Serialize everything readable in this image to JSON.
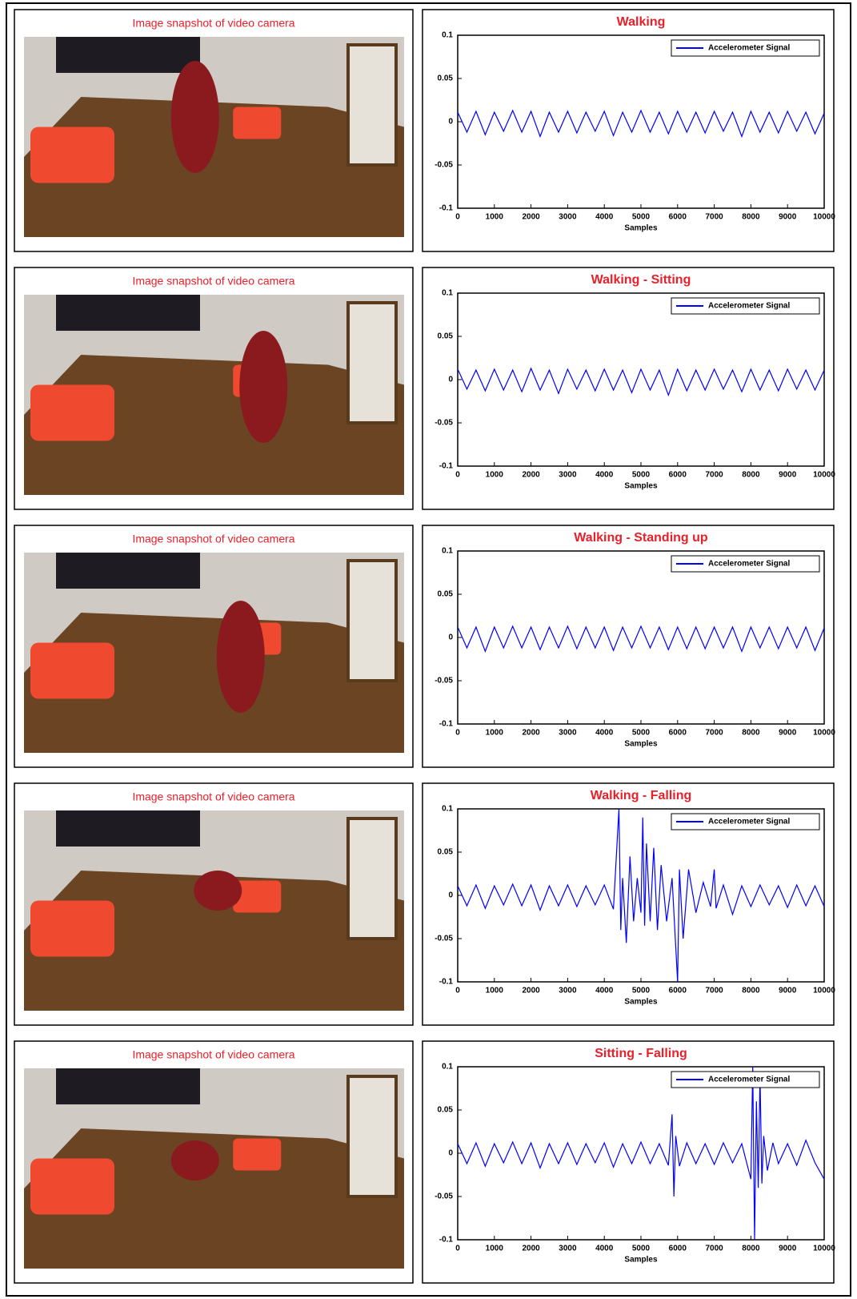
{
  "snapshots": [
    {
      "caption": "Image snapshot of video camera"
    },
    {
      "caption": "Image snapshot of video camera"
    },
    {
      "caption": "Image snapshot of video camera"
    },
    {
      "caption": "Image snapshot of video camera"
    },
    {
      "caption": "Image snapshot of video camera"
    }
  ],
  "chart_data": [
    {
      "type": "line",
      "title": "Walking",
      "xlabel": "Samples",
      "legend": "upper right",
      "xlim": [
        0,
        10000
      ],
      "ylim": [
        -0.1,
        0.1
      ],
      "xticks": [
        0,
        1000,
        2000,
        3000,
        4000,
        5000,
        6000,
        7000,
        8000,
        9000,
        10000
      ],
      "yticks": [
        -0.1,
        -0.05,
        0,
        0.05,
        0.1
      ],
      "x": [
        0,
        250,
        500,
        750,
        1000,
        1250,
        1500,
        1750,
        2000,
        2250,
        2500,
        2750,
        3000,
        3250,
        3500,
        3750,
        4000,
        4250,
        4500,
        4750,
        5000,
        5250,
        5500,
        5750,
        6000,
        6250,
        6500,
        6750,
        7000,
        7250,
        7500,
        7750,
        8000,
        8250,
        8500,
        8750,
        9000,
        9250,
        9500,
        9750,
        10000
      ],
      "series": [
        {
          "name": "Accelerometer Signal",
          "color": "#0000ff",
          "values": [
            0.011,
            -0.012,
            0.012,
            -0.015,
            0.011,
            -0.011,
            0.013,
            -0.012,
            0.012,
            -0.017,
            0.011,
            -0.012,
            0.012,
            -0.013,
            0.011,
            -0.011,
            0.012,
            -0.016,
            0.011,
            -0.012,
            0.013,
            -0.012,
            0.011,
            -0.014,
            0.012,
            -0.012,
            0.011,
            -0.013,
            0.012,
            -0.011,
            0.011,
            -0.017,
            0.012,
            -0.012,
            0.011,
            -0.013,
            0.012,
            -0.011,
            0.011,
            -0.014,
            0.01
          ]
        }
      ]
    },
    {
      "type": "line",
      "title": "Walking - Sitting",
      "xlabel": "Samples",
      "legend": "upper right",
      "xlim": [
        0,
        10000
      ],
      "ylim": [
        -0.1,
        0.1
      ],
      "xticks": [
        0,
        1000,
        2000,
        3000,
        4000,
        5000,
        6000,
        7000,
        8000,
        9000,
        10000
      ],
      "yticks": [
        -0.1,
        -0.05,
        0,
        0.05,
        0.1
      ],
      "x": [
        0,
        250,
        500,
        750,
        1000,
        1250,
        1500,
        1750,
        2000,
        2250,
        2500,
        2750,
        3000,
        3250,
        3500,
        3750,
        4000,
        4250,
        4500,
        4750,
        5000,
        5250,
        5500,
        5750,
        6000,
        6250,
        6500,
        6750,
        7000,
        7250,
        7500,
        7750,
        8000,
        8250,
        8500,
        8750,
        9000,
        9250,
        9500,
        9750,
        10000
      ],
      "series": [
        {
          "name": "Accelerometer Signal",
          "color": "#0000ff",
          "values": [
            0.012,
            -0.011,
            0.011,
            -0.013,
            0.012,
            -0.012,
            0.011,
            -0.014,
            0.013,
            -0.012,
            0.011,
            -0.016,
            0.012,
            -0.011,
            0.011,
            -0.013,
            0.012,
            -0.012,
            0.011,
            -0.015,
            0.012,
            -0.012,
            0.011,
            -0.018,
            0.012,
            -0.013,
            0.011,
            -0.012,
            0.012,
            -0.011,
            0.011,
            -0.014,
            0.012,
            -0.012,
            0.011,
            -0.013,
            0.012,
            -0.011,
            0.011,
            -0.012,
            0.011
          ]
        }
      ]
    },
    {
      "type": "line",
      "title": "Walking - Standing up",
      "xlabel": "Samples",
      "legend": "upper right",
      "xlim": [
        0,
        10000
      ],
      "ylim": [
        -0.1,
        0.1
      ],
      "xticks": [
        0,
        1000,
        2000,
        3000,
        4000,
        5000,
        6000,
        7000,
        8000,
        9000,
        10000
      ],
      "yticks": [
        -0.1,
        -0.05,
        0,
        0.05,
        0.1
      ],
      "x": [
        0,
        250,
        500,
        750,
        1000,
        1250,
        1500,
        1750,
        2000,
        2250,
        2500,
        2750,
        3000,
        3250,
        3500,
        3750,
        4000,
        4250,
        4500,
        4750,
        5000,
        5250,
        5500,
        5750,
        6000,
        6250,
        6500,
        6750,
        7000,
        7250,
        7500,
        7750,
        8000,
        8250,
        8500,
        8750,
        9000,
        9250,
        9500,
        9750,
        10000
      ],
      "series": [
        {
          "name": "Accelerometer Signal",
          "color": "#0000ff",
          "values": [
            0.012,
            -0.012,
            0.012,
            -0.016,
            0.012,
            -0.012,
            0.013,
            -0.012,
            0.012,
            -0.014,
            0.012,
            -0.012,
            0.013,
            -0.013,
            0.012,
            -0.012,
            0.012,
            -0.015,
            0.012,
            -0.012,
            0.013,
            -0.012,
            0.012,
            -0.014,
            0.012,
            -0.013,
            0.012,
            -0.013,
            0.012,
            -0.012,
            0.012,
            -0.016,
            0.012,
            -0.012,
            0.012,
            -0.013,
            0.012,
            -0.012,
            0.012,
            -0.015,
            0.011
          ]
        }
      ]
    },
    {
      "type": "line",
      "title": "Walking - Falling",
      "xlabel": "Samples",
      "legend": "upper right",
      "xlim": [
        0,
        10000
      ],
      "ylim": [
        -0.1,
        0.1
      ],
      "xticks": [
        0,
        1000,
        2000,
        3000,
        4000,
        5000,
        6000,
        7000,
        8000,
        9000,
        10000
      ],
      "yticks": [
        -0.1,
        -0.05,
        0,
        0.05,
        0.1
      ],
      "x": [
        0,
        250,
        500,
        750,
        1000,
        1250,
        1500,
        1750,
        2000,
        2250,
        2500,
        2750,
        3000,
        3250,
        3500,
        3750,
        4000,
        4250,
        4400,
        4450,
        4500,
        4600,
        4700,
        4800,
        4900,
        5000,
        5050,
        5100,
        5150,
        5250,
        5350,
        5450,
        5550,
        5700,
        5850,
        5950,
        6000,
        6050,
        6150,
        6300,
        6500,
        6700,
        6900,
        7000,
        7050,
        7250,
        7500,
        7750,
        8000,
        8250,
        8500,
        8750,
        9000,
        9250,
        9500,
        9750,
        10000
      ],
      "series": [
        {
          "name": "Accelerometer Signal",
          "color": "#0000ff",
          "values": [
            0.011,
            -0.012,
            0.012,
            -0.015,
            0.011,
            -0.011,
            0.013,
            -0.012,
            0.012,
            -0.017,
            0.011,
            -0.012,
            0.012,
            -0.013,
            0.011,
            -0.011,
            0.012,
            -0.016,
            0.1,
            -0.04,
            0.02,
            -0.055,
            0.045,
            -0.03,
            0.02,
            -0.02,
            0.09,
            -0.035,
            0.06,
            -0.03,
            0.055,
            -0.04,
            0.035,
            -0.03,
            0.02,
            -0.06,
            -0.1,
            0.03,
            -0.05,
            0.03,
            -0.02,
            0.015,
            -0.013,
            0.03,
            -0.015,
            0.012,
            -0.022,
            0.011,
            -0.013,
            0.012,
            -0.011,
            0.011,
            -0.014,
            0.012,
            -0.012,
            0.011,
            -0.013
          ]
        }
      ]
    },
    {
      "type": "line",
      "title": "Sitting - Falling",
      "xlabel": "Samples",
      "legend": "upper right",
      "xlim": [
        0,
        10000
      ],
      "ylim": [
        -0.1,
        0.1
      ],
      "xticks": [
        0,
        1000,
        2000,
        3000,
        4000,
        5000,
        6000,
        7000,
        8000,
        9000,
        10000
      ],
      "yticks": [
        -0.1,
        -0.05,
        0,
        0.05,
        0.1
      ],
      "x": [
        0,
        250,
        500,
        750,
        1000,
        1250,
        1500,
        1750,
        2000,
        2250,
        2500,
        2750,
        3000,
        3250,
        3500,
        3750,
        4000,
        4250,
        4500,
        4750,
        5000,
        5250,
        5500,
        5750,
        5850,
        5900,
        5950,
        6050,
        6250,
        6500,
        6750,
        7000,
        7250,
        7500,
        7750,
        8000,
        8050,
        8100,
        8150,
        8200,
        8250,
        8300,
        8350,
        8450,
        8600,
        8750,
        9000,
        9250,
        9500,
        9750,
        10000
      ],
      "series": [
        {
          "name": "Accelerometer Signal",
          "color": "#0000ff",
          "values": [
            0.011,
            -0.012,
            0.012,
            -0.015,
            0.011,
            -0.011,
            0.013,
            -0.012,
            0.012,
            -0.017,
            0.011,
            -0.012,
            0.012,
            -0.013,
            0.011,
            -0.011,
            0.012,
            -0.016,
            0.011,
            -0.012,
            0.013,
            -0.012,
            0.011,
            -0.014,
            0.045,
            -0.05,
            0.02,
            -0.015,
            0.012,
            -0.012,
            0.011,
            -0.013,
            0.012,
            -0.011,
            0.011,
            -0.03,
            0.1,
            -0.1,
            0.06,
            -0.04,
            0.09,
            -0.035,
            0.02,
            -0.02,
            0.012,
            -0.012,
            0.011,
            -0.014,
            0.015,
            -0.011,
            -0.03
          ]
        }
      ]
    }
  ]
}
